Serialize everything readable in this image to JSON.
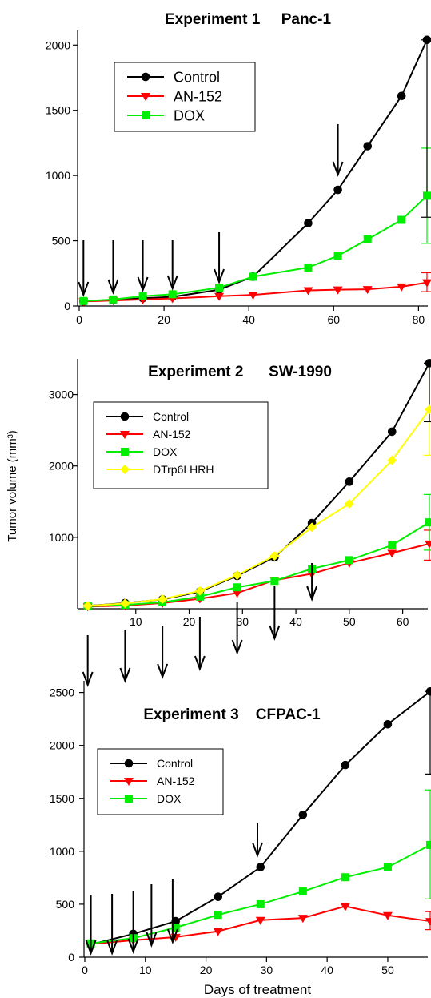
{
  "figure": {
    "ylabel": "Tumor volume (mm³)",
    "xlabel": "Days of treatment"
  },
  "colors": {
    "control": "#000000",
    "an152": "#ff0000",
    "dox": "#00ee00",
    "dtrp": "#ffff00"
  },
  "chart_data": [
    {
      "type": "line",
      "title": "Experiment 1     Panc-1",
      "xlabel": "",
      "ylabel": "",
      "xlim": [
        0,
        82
      ],
      "ylim": [
        0,
        2100
      ],
      "xticks": [
        0,
        20,
        40,
        60,
        80
      ],
      "yticks": [
        0,
        500,
        1000,
        1500,
        2000
      ],
      "legend": "top-left",
      "series": [
        {
          "name": "Control",
          "color": "#000000",
          "marker": "circle",
          "x": [
            1,
            8,
            15,
            22,
            33,
            41,
            54,
            61,
            68,
            76,
            82
          ],
          "y": [
            35,
            45,
            60,
            70,
            125,
            225,
            635,
            890,
            1225,
            1610,
            2040
          ]
        },
        {
          "name": "AN-152",
          "color": "#ff0000",
          "marker": "triangle-down",
          "x": [
            1,
            8,
            15,
            22,
            33,
            41,
            54,
            61,
            68,
            76,
            82
          ],
          "y": [
            35,
            42,
            50,
            58,
            75,
            85,
            120,
            125,
            128,
            148,
            180
          ],
          "error": {
            "x": 82,
            "low": 110,
            "high": 255
          }
        },
        {
          "name": "DOX",
          "color": "#00ee00",
          "marker": "square",
          "x": [
            1,
            8,
            15,
            22,
            33,
            41,
            54,
            61,
            68,
            76,
            82
          ],
          "y": [
            38,
            50,
            75,
            90,
            140,
            225,
            295,
            385,
            510,
            660,
            845
          ],
          "error": {
            "x": 82,
            "low": 480,
            "high": 1210
          }
        }
      ],
      "control_error": {
        "x": 82,
        "low": 680,
        "high": 2040
      },
      "arrows": [
        1,
        8,
        15,
        22,
        33,
        61
      ]
    },
    {
      "type": "line",
      "title": "Experiment 2      SW-1990",
      "xlabel": "",
      "ylabel": "",
      "xlim": [
        0,
        65
      ],
      "ylim": [
        0,
        3500
      ],
      "xticks": [
        10,
        20,
        30,
        40,
        50,
        60
      ],
      "yticks": [
        1000,
        2000,
        3000
      ],
      "legend": "left",
      "series": [
        {
          "name": "Control",
          "color": "#000000",
          "marker": "circle",
          "x": [
            1,
            8,
            15,
            22,
            29,
            36,
            43,
            50,
            58,
            65
          ],
          "y": [
            40,
            80,
            130,
            240,
            460,
            720,
            1200,
            1780,
            2480,
            3440
          ]
        },
        {
          "name": "AN-152",
          "color": "#ff0000",
          "marker": "triangle-down",
          "x": [
            1,
            8,
            15,
            22,
            29,
            36,
            43,
            50,
            58,
            65
          ],
          "y": [
            30,
            45,
            80,
            140,
            220,
            400,
            490,
            640,
            780,
            910
          ],
          "error": {
            "x": 65,
            "low": 680,
            "high": 1100
          }
        },
        {
          "name": "DOX",
          "color": "#00ee00",
          "marker": "square",
          "x": [
            1,
            8,
            15,
            22,
            29,
            36,
            43,
            50,
            58,
            65
          ],
          "y": [
            35,
            55,
            90,
            170,
            300,
            390,
            560,
            680,
            890,
            1210
          ],
          "error": {
            "x": 65,
            "low": 820,
            "high": 1600
          }
        },
        {
          "name": "DTrp6LHRH",
          "color": "#ffff00",
          "marker": "diamond",
          "x": [
            1,
            8,
            15,
            22,
            29,
            36,
            43,
            50,
            58,
            65
          ],
          "y": [
            40,
            75,
            135,
            250,
            470,
            740,
            1140,
            1470,
            2080,
            2790
          ],
          "error": {
            "x": 65,
            "low": 2150,
            "high": 3440
          }
        }
      ],
      "control_error": {
        "x": 65,
        "low": 2620,
        "high": 3440
      },
      "arrows": [
        1,
        8,
        15,
        22,
        29,
        36,
        43
      ]
    },
    {
      "type": "line",
      "title": "Experiment 3    CFPAC-1",
      "xlabel": "Days of treatment",
      "ylabel": "",
      "xlim": [
        0,
        57
      ],
      "ylim": [
        0,
        2550
      ],
      "xticks": [
        0,
        10,
        20,
        30,
        40,
        50
      ],
      "yticks": [
        0,
        500,
        1000,
        1500,
        2000,
        2500
      ],
      "legend": "left",
      "series": [
        {
          "name": "Control",
          "color": "#000000",
          "marker": "circle",
          "x": [
            1,
            8,
            15,
            22,
            29,
            36,
            43,
            50,
            57
          ],
          "y": [
            120,
            220,
            340,
            570,
            850,
            1345,
            1815,
            2200,
            2510
          ]
        },
        {
          "name": "AN-152",
          "color": "#ff0000",
          "marker": "triangle-down",
          "x": [
            1,
            8,
            15,
            22,
            29,
            36,
            43,
            50,
            57
          ],
          "y": [
            125,
            160,
            190,
            245,
            350,
            370,
            480,
            395,
            340
          ],
          "error": {
            "x": 57,
            "low": 260,
            "high": 430
          }
        },
        {
          "name": "DOX",
          "color": "#00ee00",
          "marker": "square",
          "x": [
            1,
            8,
            15,
            22,
            29,
            36,
            43,
            50,
            57
          ],
          "y": [
            130,
            180,
            280,
            400,
            500,
            620,
            755,
            850,
            1060
          ],
          "error": {
            "x": 57,
            "low": 550,
            "high": 1580
          }
        }
      ],
      "control_error": {
        "x": 57,
        "low": 1730,
        "high": 2510
      },
      "arrows": [
        1,
        4.5,
        8,
        11,
        14.5,
        28.5
      ]
    }
  ]
}
